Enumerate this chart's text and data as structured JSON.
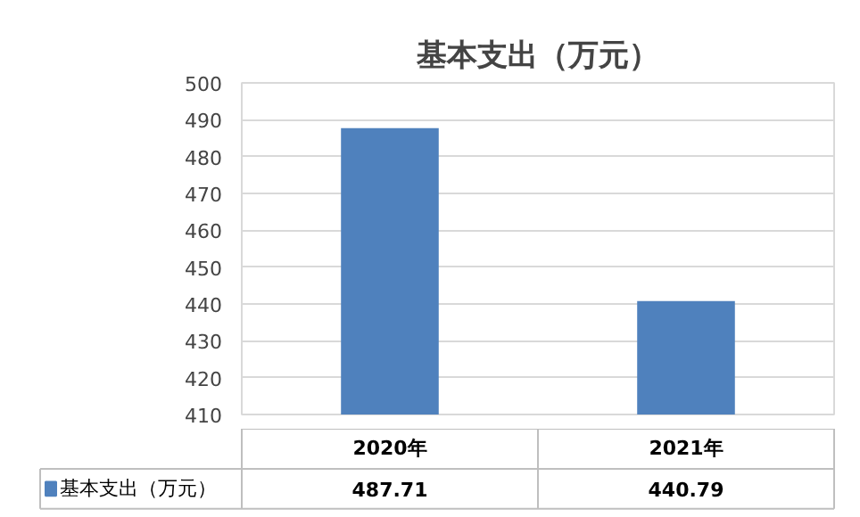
{
  "chart_data": {
    "type": "bar",
    "title": "基本支出（万元）",
    "categories": [
      "2020年",
      "2021年"
    ],
    "series": [
      {
        "name": "基本支出（万元）",
        "color": "#4f81bd",
        "values": [
          487.71,
          440.79
        ]
      }
    ],
    "ylim": [
      410,
      500
    ],
    "yticks": [
      410,
      420,
      430,
      440,
      450,
      460,
      470,
      480,
      490,
      500
    ],
    "grid": "y",
    "legend": "bottom",
    "data_labels": true
  }
}
